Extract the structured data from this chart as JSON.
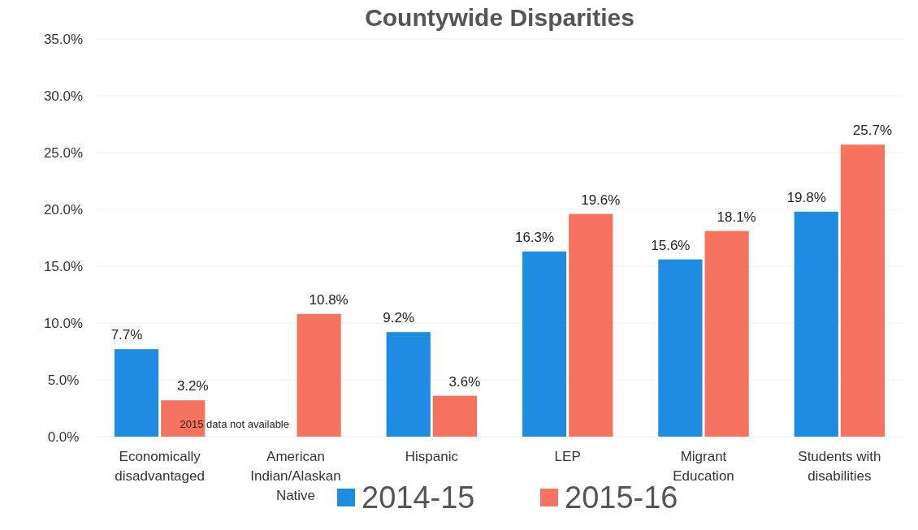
{
  "chart_data": {
    "type": "bar",
    "title": "Countywide Disparities",
    "categories": [
      "Economically disadvantaged",
      "American Indian/Alaskan Native",
      "Hispanic",
      "LEP",
      "Migrant Education",
      "Students with disabilities"
    ],
    "series": [
      {
        "name": "2014-15",
        "color": "#1e8ce0",
        "values": [
          7.7,
          null,
          9.2,
          16.3,
          15.6,
          19.8
        ]
      },
      {
        "name": "2015-16",
        "color": "#f5735f",
        "values": [
          3.2,
          10.8,
          3.6,
          19.6,
          18.1,
          25.7
        ]
      }
    ],
    "ylim": [
      0,
      35
    ],
    "yticks": [
      {
        "value": 0,
        "label": "0.0%"
      },
      {
        "value": 5,
        "label": "5.0%"
      },
      {
        "value": 10,
        "label": "10.0%"
      },
      {
        "value": 15,
        "label": "15.0%"
      },
      {
        "value": 20,
        "label": "20.0%"
      },
      {
        "value": 25,
        "label": "25.0%"
      },
      {
        "value": 30,
        "label": "30.0%"
      },
      {
        "value": 35,
        "label": "35.0%"
      }
    ],
    "grid": "y",
    "legend": "bottom",
    "value_labels": [
      [
        "7.7%",
        null,
        "9.2%",
        "16.3%",
        "15.6%",
        "19.8%"
      ],
      [
        "3.2%",
        "10.8%",
        "3.6%",
        "19.6%",
        "18.1%",
        "25.7%"
      ]
    ],
    "annotations": [
      {
        "text": "2015 data not available",
        "x": "American Indian/Alaskan Native",
        "y": 0.8
      }
    ]
  }
}
